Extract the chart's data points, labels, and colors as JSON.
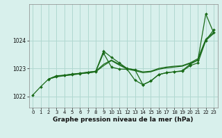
{
  "title": "Graphe pression niveau de la mer (hPa)",
  "bg_color": "#d8f0ec",
  "grid_color": "#b0d8d0",
  "line_color": "#1a6b1a",
  "marker_color": "#1a6b1a",
  "xlim": [
    -0.5,
    23.5
  ],
  "ylim": [
    1021.6,
    1025.3
  ],
  "yticks": [
    1022,
    1023,
    1024
  ],
  "xticks": [
    0,
    1,
    2,
    3,
    4,
    5,
    6,
    7,
    8,
    9,
    10,
    11,
    12,
    13,
    14,
    15,
    16,
    17,
    18,
    19,
    20,
    21,
    22,
    23
  ],
  "lines": [
    {
      "x": [
        0,
        1,
        2,
        3,
        4,
        5,
        6,
        7,
        8,
        9,
        10,
        11,
        12,
        13,
        14,
        15,
        16,
        17,
        18,
        19,
        20,
        21,
        22,
        23
      ],
      "y": [
        1022.05,
        1022.35,
        1022.62,
        1022.74,
        1022.76,
        1022.79,
        1022.82,
        1022.85,
        1022.88,
        1023.55,
        1023.05,
        1022.98,
        1022.97,
        1022.58,
        1022.42,
        1022.55,
        1022.78,
        1022.85,
        1022.88,
        1022.9,
        1023.1,
        1023.2,
        1024.0,
        1024.38
      ],
      "marker": true,
      "lw": 0.9
    },
    {
      "x": [
        2,
        3,
        4,
        5,
        6,
        7,
        8,
        9,
        10,
        11,
        12,
        13,
        14,
        15,
        16,
        17,
        18,
        19,
        20,
        21,
        22,
        23
      ],
      "y": [
        1022.62,
        1022.72,
        1022.76,
        1022.8,
        1022.83,
        1022.87,
        1022.9,
        1023.62,
        1023.4,
        1023.2,
        1023.0,
        1022.95,
        1022.42,
        1022.55,
        1022.78,
        1022.85,
        1022.88,
        1022.92,
        1023.15,
        1023.3,
        1024.95,
        1024.28
      ],
      "marker": true,
      "lw": 0.9
    },
    {
      "x": [
        2,
        3,
        4,
        5,
        6,
        7,
        8,
        9,
        10,
        11,
        12,
        13,
        14,
        15,
        16,
        17,
        18,
        19,
        20,
        21,
        22,
        23
      ],
      "y": [
        1022.62,
        1022.72,
        1022.75,
        1022.79,
        1022.82,
        1022.86,
        1022.9,
        1023.15,
        1023.3,
        1023.15,
        1023.0,
        1022.95,
        1022.88,
        1022.9,
        1023.0,
        1023.05,
        1023.08,
        1023.1,
        1023.2,
        1023.35,
        1024.05,
        1024.28
      ],
      "marker": false,
      "lw": 0.9
    },
    {
      "x": [
        2,
        3,
        4,
        5,
        6,
        7,
        8,
        9,
        10,
        11,
        12,
        13,
        14,
        15,
        16,
        17,
        18,
        19,
        20,
        21,
        22,
        23
      ],
      "y": [
        1022.62,
        1022.7,
        1022.74,
        1022.77,
        1022.81,
        1022.84,
        1022.88,
        1023.1,
        1023.28,
        1023.12,
        1022.98,
        1022.92,
        1022.85,
        1022.88,
        1022.97,
        1023.02,
        1023.05,
        1023.08,
        1023.18,
        1023.3,
        1024.0,
        1024.25
      ],
      "marker": false,
      "lw": 0.9
    }
  ]
}
